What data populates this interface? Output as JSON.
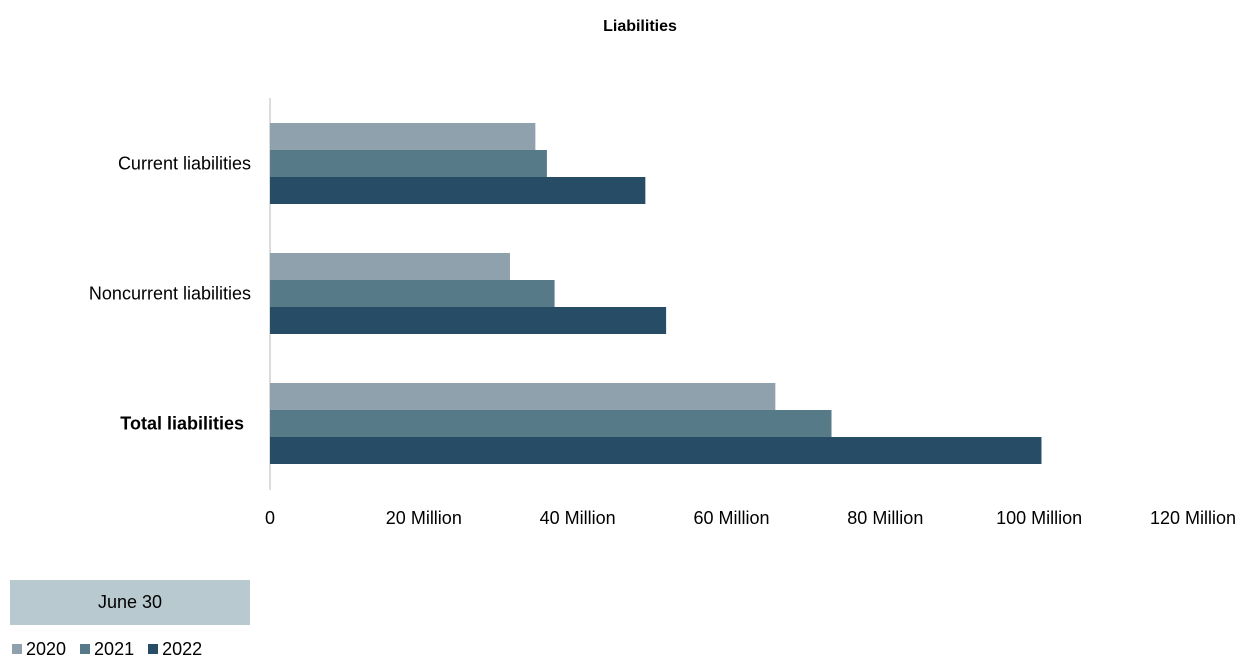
{
  "chart_data": {
    "type": "bar",
    "orientation": "horizontal",
    "title": "Liabilities",
    "categories": [
      "Current liabilities",
      "Noncurrent liabilities",
      "Total liabilities"
    ],
    "bold_categories": [
      "Total liabilities"
    ],
    "series": [
      {
        "name": "2020",
        "color": "#8fa1ad",
        "values": [
          34.5,
          31.2,
          65.7
        ]
      },
      {
        "name": "2021",
        "color": "#567a87",
        "values": [
          36.0,
          37.0,
          73.0
        ]
      },
      {
        "name": "2022",
        "color": "#274c66",
        "values": [
          48.8,
          51.5,
          100.3
        ]
      }
    ],
    "xlim": [
      0,
      120
    ],
    "ticks": [
      "0",
      "20 Million",
      "40 Million",
      "60 Million",
      "80 Million",
      "100 Million",
      "120 Million"
    ],
    "legend_group_label": "June 30",
    "legend_position": "bottom-left",
    "grid": false
  }
}
